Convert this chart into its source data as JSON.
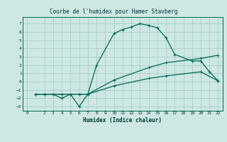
{
  "title": "Courbe de l'humidex pour Hamer Stavberg",
  "xlabel": "Humidex (Indice chaleur)",
  "bg_color": "#cde8e4",
  "grid_color": "#aaccc8",
  "line_color": "#006655",
  "xlim": [
    -0.5,
    22.5
  ],
  "ylim": [
    -3.5,
    7.8
  ],
  "xticks": [
    0,
    2,
    3,
    4,
    5,
    6,
    7,
    8,
    9,
    10,
    11,
    12,
    13,
    14,
    15,
    16,
    17,
    18,
    19,
    20,
    21,
    22
  ],
  "yticks": [
    -3,
    -2,
    -1,
    0,
    1,
    2,
    3,
    4,
    5,
    6,
    7
  ],
  "line1_x": [
    1,
    2,
    3,
    4,
    5,
    6,
    7,
    8,
    10,
    11,
    12,
    13,
    14,
    15,
    16,
    17,
    19,
    20,
    21,
    22
  ],
  "line1_y": [
    -1.5,
    -1.5,
    -1.5,
    -2.0,
    -1.5,
    -3.0,
    -1.5,
    2.0,
    5.8,
    6.3,
    6.6,
    7.0,
    6.8,
    6.5,
    5.3,
    3.3,
    2.5,
    2.5,
    1.2,
    0.1
  ],
  "line2_x": [
    1,
    2,
    3,
    4,
    5,
    6,
    7,
    10,
    14,
    16,
    20,
    22
  ],
  "line2_y": [
    -1.5,
    -1.5,
    -1.5,
    -1.5,
    -1.5,
    -1.5,
    -1.5,
    0.2,
    1.7,
    2.3,
    2.8,
    3.2
  ],
  "line3_x": [
    1,
    2,
    3,
    4,
    5,
    6,
    7,
    10,
    14,
    16,
    20,
    22
  ],
  "line3_y": [
    -1.5,
    -1.5,
    -1.5,
    -1.5,
    -1.5,
    -1.5,
    -1.5,
    -0.5,
    0.4,
    0.7,
    1.2,
    0.1
  ]
}
